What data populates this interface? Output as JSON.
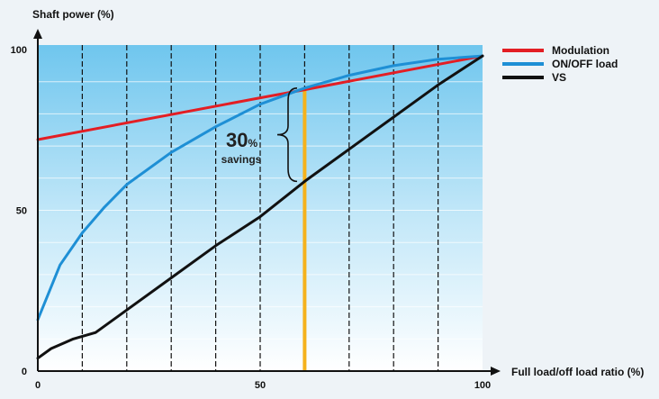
{
  "chart_data": {
    "type": "line",
    "xlabel": "Full load/off load ratio (%)",
    "ylabel": "Shaft power (%)",
    "xlim": [
      0,
      100
    ],
    "ylim": [
      0,
      100
    ],
    "x_ticks": [
      "0",
      "50",
      "100"
    ],
    "y_ticks": [
      "0",
      "50",
      "100"
    ],
    "grid": {
      "vertical_dashed": [
        10,
        20,
        30,
        40,
        50,
        60,
        70,
        80,
        90
      ],
      "horizontal": true
    },
    "legend_position": "right",
    "series": [
      {
        "name": "Modulation",
        "color": "#e31e24",
        "points": [
          [
            0,
            72
          ],
          [
            50,
            85
          ],
          [
            60,
            87.5
          ],
          [
            100,
            98
          ]
        ]
      },
      {
        "name": "ON/OFF load",
        "color": "#1e8fd5",
        "points": [
          [
            0,
            16
          ],
          [
            5,
            33
          ],
          [
            10,
            43
          ],
          [
            15,
            51
          ],
          [
            20,
            58
          ],
          [
            30,
            68
          ],
          [
            40,
            76
          ],
          [
            50,
            83
          ],
          [
            60,
            88
          ],
          [
            70,
            92
          ],
          [
            80,
            95
          ],
          [
            90,
            97
          ],
          [
            100,
            98
          ]
        ]
      },
      {
        "name": "VS",
        "color": "#111111",
        "points": [
          [
            0,
            4
          ],
          [
            3,
            7
          ],
          [
            8,
            10
          ],
          [
            13,
            12
          ],
          [
            20,
            19
          ],
          [
            30,
            29
          ],
          [
            40,
            39
          ],
          [
            50,
            48
          ],
          [
            60,
            59
          ],
          [
            70,
            69
          ],
          [
            80,
            79
          ],
          [
            90,
            89
          ],
          [
            100,
            98
          ]
        ]
      }
    ],
    "marker_line": {
      "x": 60,
      "color": "#f5b21c"
    },
    "annotation": {
      "value": "30",
      "unit": "%",
      "text": "savings",
      "x": 60,
      "y_from": 59,
      "y_to": 88
    }
  }
}
